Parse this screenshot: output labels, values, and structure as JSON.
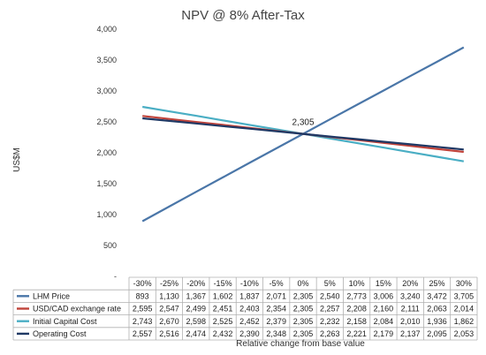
{
  "chart_data": {
    "type": "line",
    "title": "NPV @ 8% After-Tax",
    "ylabel": "US$M",
    "xlabel": "Relative change from base value",
    "ylim": [
      0,
      4000
    ],
    "yticks": [
      "4,000",
      "3,500",
      "3,000",
      "2,500",
      "2,000",
      "1,500",
      "1,000",
      "500",
      "-"
    ],
    "categories": [
      "-30%",
      "-25%",
      "-20%",
      "-15%",
      "-10%",
      "-5%",
      "0%",
      "5%",
      "10%",
      "15%",
      "20%",
      "25%",
      "30%"
    ],
    "annotation": {
      "text": "2,305",
      "x_index": 6,
      "value": 2305
    },
    "legend_placement": "data-table",
    "grid": false,
    "series": [
      {
        "name": "LHM Price",
        "color": "#4a76a8",
        "values": [
          893,
          1130,
          1367,
          1602,
          1837,
          2071,
          2305,
          2540,
          2773,
          3006,
          3240,
          3472,
          3705
        ],
        "labels": [
          "893",
          "1,130",
          "1,367",
          "1,602",
          "1,837",
          "2,071",
          "2,305",
          "2,540",
          "2,773",
          "3,006",
          "3,240",
          "3,472",
          "3,705"
        ]
      },
      {
        "name": "USD/CAD exchange rate",
        "color": "#c0433a",
        "values": [
          2595,
          2547,
          2499,
          2451,
          2403,
          2354,
          2305,
          2257,
          2208,
          2160,
          2111,
          2063,
          2014
        ],
        "labels": [
          "2,595",
          "2,547",
          "2,499",
          "2,451",
          "2,403",
          "2,354",
          "2,305",
          "2,257",
          "2,208",
          "2,160",
          "2,111",
          "2,063",
          "2,014"
        ]
      },
      {
        "name": "Initial Capital Cost",
        "color": "#4aaec4",
        "values": [
          2743,
          2670,
          2598,
          2525,
          2452,
          2379,
          2305,
          2232,
          2158,
          2084,
          2010,
          1936,
          1862
        ],
        "labels": [
          "2,743",
          "2,670",
          "2,598",
          "2,525",
          "2,452",
          "2,379",
          "2,305",
          "2,232",
          "2,158",
          "2,084",
          "2,010",
          "1,936",
          "1,862"
        ]
      },
      {
        "name": "Operating Cost",
        "color": "#1f3864",
        "values": [
          2557,
          2516,
          2474,
          2432,
          2390,
          2348,
          2305,
          2263,
          2221,
          2179,
          2137,
          2095,
          2053
        ],
        "labels": [
          "2,557",
          "2,516",
          "2,474",
          "2,432",
          "2,390",
          "2,348",
          "2,305",
          "2,263",
          "2,221",
          "2,179",
          "2,137",
          "2,095",
          "2,053"
        ]
      }
    ]
  }
}
